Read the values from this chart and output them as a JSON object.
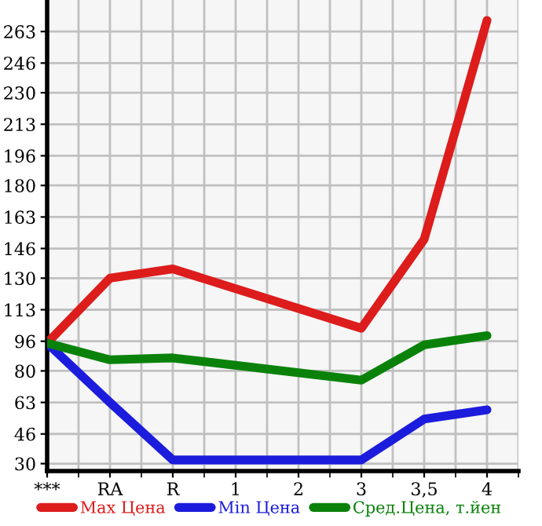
{
  "chart_data": {
    "type": "line",
    "categories": [
      "***",
      "RA",
      "R",
      "1",
      "2",
      "3",
      "3,5",
      "4"
    ],
    "series": [
      {
        "name": "Max Цена",
        "color": "#dd1c1c",
        "values": [
          95,
          130,
          135,
          null,
          null,
          103,
          151,
          269
        ]
      },
      {
        "name": "Min Цена",
        "color": "#1c1cdd",
        "values": [
          95,
          63,
          32,
          null,
          null,
          32,
          54,
          59
        ]
      },
      {
        "name": "Сред.Цена, т.йен",
        "color": "#0a820a",
        "values": [
          95,
          86,
          87,
          null,
          null,
          75,
          94,
          99
        ]
      }
    ],
    "ylim": [
      26,
      280
    ],
    "yticks": [
      30,
      46,
      63,
      80,
      96,
      113,
      130,
      146,
      163,
      180,
      196,
      213,
      230,
      246,
      263
    ],
    "grid": true,
    "legend": "bottom",
    "marker": "none",
    "line_style": "solid"
  }
}
